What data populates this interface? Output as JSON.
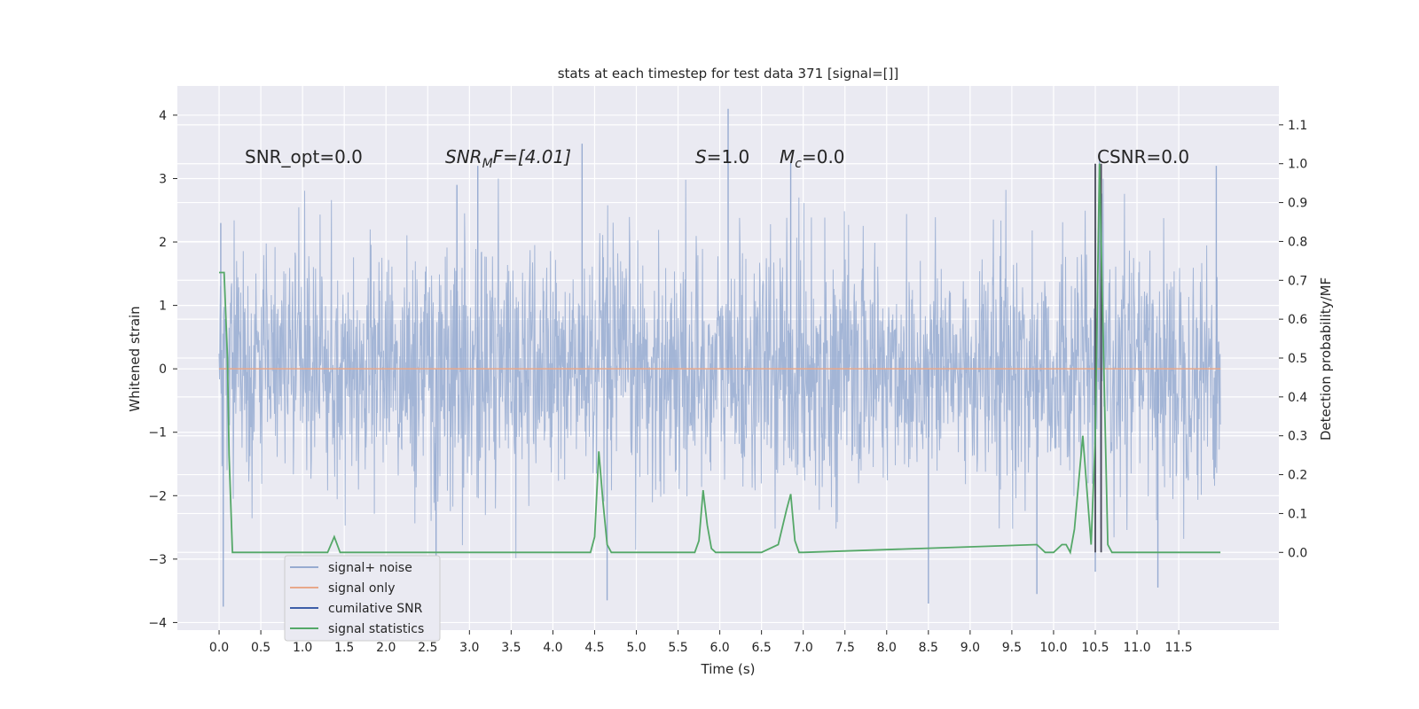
{
  "chart_data": {
    "type": "line",
    "title": "stats at each timestep for test data 371 [signal=[]]",
    "xlabel": "Time (s)",
    "ylabel_left": "Whitened strain",
    "ylabel_right": "Detection probability/MF",
    "xlim": [
      -0.5,
      12.7
    ],
    "ylim_left": [
      -4.12,
      4.46
    ],
    "ylim_right": [
      -0.2,
      1.2
    ],
    "grid": true,
    "x_ticks": [
      "0.0",
      "0.5",
      "1.0",
      "1.5",
      "2.0",
      "2.5",
      "3.0",
      "3.5",
      "4.0",
      "4.5",
      "5.0",
      "5.5",
      "6.0",
      "6.5",
      "7.0",
      "7.5",
      "8.0",
      "8.5",
      "9.0",
      "9.5",
      "10.0",
      "10.5",
      "11.0",
      "11.5"
    ],
    "y_left_ticks": [
      "4",
      "3",
      "2",
      "1",
      "0",
      "−1",
      "−2",
      "−3",
      "−4"
    ],
    "y_right_ticks": [
      "1.1",
      "1.0",
      "0.9",
      "0.8",
      "0.7",
      "0.6",
      "0.5",
      "0.4",
      "0.3",
      "0.2",
      "0.1",
      "0.0"
    ],
    "legend_position": "lower-left",
    "legend": [
      "signal+ noise",
      "signal only",
      "cumilative SNR",
      "signal statistics"
    ],
    "annotations": {
      "snr_opt": "SNR_opt=0.0",
      "snr_mf_main": "SNR",
      "snr_mf_sub": "M",
      "snr_mf_rest": "F=[4.01]",
      "s_main": "S",
      "s_rest": "=1.0",
      "mc_main": "M",
      "mc_sub": "c",
      "mc_rest": "=0.0",
      "csnr": "CSNR=0.0"
    },
    "series": [
      {
        "name": "signal+ noise",
        "axis": "left",
        "color": "#97abd1",
        "style": "dense noise, roughly ±1.4 core with spikes up to about 4.1 and down to about -3.8",
        "x_range": [
          0.0,
          12.0
        ],
        "notable_peaks": [
          [
            0.02,
            2.3
          ],
          [
            2.85,
            2.9
          ],
          [
            3.1,
            3.2
          ],
          [
            4.35,
            3.55
          ],
          [
            6.1,
            4.1
          ],
          [
            6.85,
            3.25
          ],
          [
            10.55,
            3.4
          ],
          [
            11.95,
            3.2
          ]
        ],
        "notable_troughs": [
          [
            0.05,
            -3.75
          ],
          [
            2.6,
            -3.45
          ],
          [
            4.65,
            -3.65
          ],
          [
            8.5,
            -3.7
          ],
          [
            9.8,
            -3.55
          ],
          [
            10.5,
            -3.2
          ],
          [
            11.25,
            -3.45
          ]
        ]
      },
      {
        "name": "signal only",
        "axis": "left",
        "color": "#e8a88a",
        "x": [
          0.0,
          12.0
        ],
        "y": [
          0.0,
          0.0
        ]
      },
      {
        "name": "cumilative SNR",
        "axis": "left",
        "color": "#3d5ea8",
        "x": [],
        "y": []
      },
      {
        "name": "signal statistics",
        "axis": "right",
        "color": "#55a868",
        "x": [
          0.0,
          0.06,
          0.1,
          0.12,
          0.16,
          1.0,
          1.3,
          1.38,
          1.45,
          1.5,
          4.45,
          4.5,
          4.55,
          4.6,
          4.65,
          4.7,
          5.7,
          5.75,
          5.8,
          5.85,
          5.9,
          5.95,
          6.5,
          6.7,
          6.8,
          6.85,
          6.9,
          6.95,
          7.0,
          9.8,
          9.85,
          9.9,
          10.0,
          10.1,
          10.15,
          10.2,
          10.25,
          10.35,
          10.4,
          10.45,
          10.5,
          10.55,
          10.6,
          10.65,
          10.7,
          11.0,
          12.0
        ],
        "y": [
          0.72,
          0.72,
          0.5,
          0.25,
          0.0,
          0.0,
          0.0,
          0.04,
          0.0,
          0.0,
          0.0,
          0.04,
          0.26,
          0.13,
          0.02,
          0.0,
          0.0,
          0.03,
          0.16,
          0.07,
          0.01,
          0.0,
          0.0,
          0.02,
          0.11,
          0.15,
          0.03,
          0.0,
          0.0,
          0.02,
          0.01,
          0.0,
          0.0,
          0.02,
          0.02,
          0.0,
          0.06,
          0.3,
          0.16,
          0.02,
          0.3,
          1.0,
          0.5,
          0.02,
          0.0,
          0.0,
          0.0
        ]
      }
    ],
    "vertical_markers": {
      "color": "#4a4a5a",
      "x": [
        10.5,
        10.57
      ],
      "y_right": [
        0.0,
        1.0
      ]
    }
  },
  "colors": {
    "background": "#ffffff",
    "plot_background": "#eaeaf2",
    "grid": "#ffffff"
  }
}
